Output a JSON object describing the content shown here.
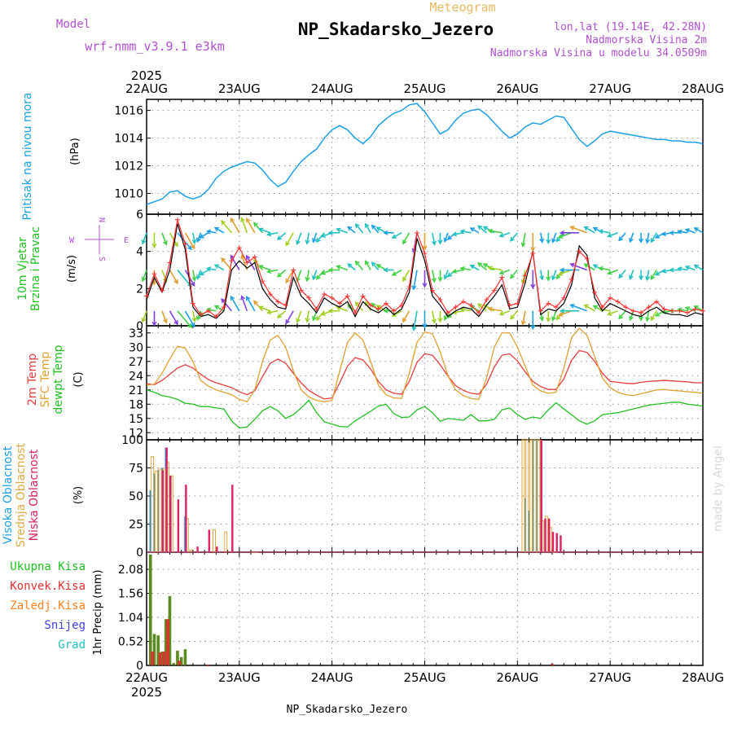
{
  "header": {
    "meteogram_label": "Meteogram",
    "station_title": "NP_Skadarsko_Jezero",
    "model_label": "Model",
    "model_name": "wrf-nmm_v3.9.1 e3km",
    "coords": "lon,lat (19.14E, 42.28N)",
    "elevation": "Nadmorska Visina 2m",
    "model_elevation": "Nadmorska Visina u modelu 34.0509m",
    "footer_station": "NP_Skadarsko_Jezero",
    "credit": "made by Angel"
  },
  "time_axis": {
    "year": "2025",
    "day_labels": [
      "22AUG",
      "23AUG",
      "24AUG",
      "25AUG",
      "26AUG",
      "27AUG",
      "28AUG"
    ],
    "range_hours": [
      0,
      144
    ]
  },
  "compass": {
    "n": "N",
    "s": "S",
    "e": "E",
    "w": "W"
  },
  "colors": {
    "pressure": "#1aa0e6",
    "wind_obs": "#000000",
    "wind_gust": "#ff3030",
    "temp2m": "#e83c3c",
    "sfc_temp": "#e0a030",
    "dewpt": "#20c020",
    "cloud_high": "#1e90dc",
    "cloud_mid": "#e0a840",
    "cloud_low": "#dc2060",
    "precip_total": "#5a8a20",
    "precip_conv": "#e03030",
    "precip_frozen": "#ff8020",
    "snow": "#4040e0",
    "graupel": "#20c0c0",
    "purple_text": "#b050d0"
  },
  "chart_data": [
    {
      "type": "line",
      "name": "pressure",
      "title": "Pritisak na nivou mora",
      "ylabel": "(hPa)",
      "ylim": [
        1008.5,
        1016.8
      ],
      "yticks": [
        1010,
        1012,
        1014,
        1016
      ],
      "x": [
        0,
        2,
        4,
        6,
        8,
        10,
        12,
        14,
        16,
        18,
        20,
        22,
        24,
        26,
        28,
        30,
        32,
        34,
        36,
        38,
        40,
        42,
        44,
        46,
        48,
        50,
        52,
        54,
        56,
        58,
        60,
        62,
        64,
        66,
        68,
        70,
        72,
        74,
        76,
        78,
        80,
        82,
        84,
        86,
        88,
        90,
        92,
        94,
        96,
        98,
        100,
        102,
        104,
        106,
        108,
        110,
        112,
        114,
        116,
        118,
        120,
        122,
        124,
        126,
        128,
        130,
        132,
        134,
        136,
        138,
        140,
        142,
        144
      ],
      "series": [
        {
          "name": "Pritisak na nivou mora",
          "values": [
            1009.2,
            1009.4,
            1009.6,
            1010.1,
            1010.2,
            1009.8,
            1009.6,
            1009.8,
            1010.3,
            1011.1,
            1011.6,
            1011.9,
            1012.1,
            1012.3,
            1012.2,
            1011.7,
            1011.0,
            1010.5,
            1010.8,
            1011.6,
            1012.3,
            1012.8,
            1013.2,
            1014.0,
            1014.6,
            1014.9,
            1014.6,
            1014.0,
            1013.6,
            1014.1,
            1014.9,
            1015.4,
            1015.8,
            1016.0,
            1016.4,
            1016.5,
            1015.9,
            1015.1,
            1014.3,
            1014.6,
            1015.3,
            1015.8,
            1016.0,
            1016.1,
            1015.7,
            1015.1,
            1014.5,
            1014.0,
            1014.3,
            1014.8,
            1015.1,
            1015.0,
            1015.3,
            1015.6,
            1015.5,
            1014.7,
            1013.9,
            1013.4,
            1013.8,
            1014.3,
            1014.5,
            1014.4,
            1014.3,
            1014.2,
            1014.1,
            1014.0,
            1013.9,
            1013.9,
            1013.8,
            1013.8,
            1013.7,
            1013.7,
            1013.6
          ]
        }
      ]
    },
    {
      "type": "line",
      "name": "wind",
      "title": "10m Vjetar Brzina i Pravac",
      "ylabel": "(m/s)",
      "ylim": [
        0,
        6
      ],
      "yticks": [
        0,
        2,
        4,
        6
      ],
      "x": [
        0,
        2,
        4,
        6,
        8,
        10,
        12,
        14,
        16,
        18,
        20,
        22,
        24,
        26,
        28,
        30,
        32,
        34,
        36,
        38,
        40,
        42,
        44,
        46,
        48,
        50,
        52,
        54,
        56,
        58,
        60,
        62,
        64,
        66,
        68,
        70,
        72,
        74,
        76,
        78,
        80,
        82,
        84,
        86,
        88,
        90,
        92,
        94,
        96,
        98,
        100,
        102,
        104,
        106,
        108,
        110,
        112,
        114,
        116,
        118,
        120,
        122,
        124,
        126,
        128,
        130,
        132,
        134,
        136,
        138,
        140,
        142,
        144
      ],
      "series": [
        {
          "name": "wind speed",
          "values": [
            1.4,
            2.6,
            1.8,
            3.0,
            5.5,
            4.1,
            1.0,
            0.5,
            0.6,
            0.4,
            0.8,
            3.0,
            3.5,
            3.1,
            3.4,
            2.0,
            1.4,
            1.0,
            0.9,
            2.6,
            1.6,
            1.2,
            0.7,
            1.5,
            1.2,
            1.0,
            1.3,
            0.5,
            1.3,
            0.9,
            0.7,
            1.0,
            0.6,
            0.9,
            1.8,
            4.7,
            3.5,
            1.6,
            1.1,
            0.5,
            0.8,
            1.0,
            0.9,
            0.5,
            1.1,
            1.6,
            2.2,
            0.9,
            1.0,
            2.3,
            4.0,
            0.6,
            0.9,
            0.8,
            1.2,
            2.2,
            4.3,
            3.8,
            1.5,
            0.8,
            1.2,
            1.0,
            0.8,
            0.6,
            0.5,
            0.8,
            1.0,
            0.7,
            0.6,
            0.6,
            0.5,
            0.7,
            0.6
          ]
        },
        {
          "name": "gust",
          "values": [
            1.6,
            2.8,
            1.9,
            3.4,
            5.7,
            4.4,
            1.2,
            0.6,
            0.8,
            0.5,
            1.0,
            3.5,
            4.2,
            3.4,
            3.7,
            2.4,
            1.7,
            1.3,
            1.1,
            3.0,
            1.9,
            1.5,
            0.9,
            1.7,
            1.5,
            1.2,
            1.6,
            0.7,
            1.6,
            1.1,
            0.9,
            1.2,
            0.8,
            1.1,
            2.1,
            5.0,
            3.9,
            1.9,
            1.4,
            0.7,
            1.0,
            1.3,
            1.1,
            0.7,
            1.4,
            1.9,
            2.6,
            1.1,
            1.2,
            2.7,
            3.9,
            0.8,
            1.2,
            1.0,
            1.5,
            2.5,
            4.0,
            3.6,
            1.8,
            1.0,
            1.5,
            1.3,
            1.0,
            0.8,
            0.7,
            1.0,
            1.3,
            0.9,
            0.8,
            0.8,
            0.7,
            0.9,
            0.8
          ]
        }
      ],
      "dir_deg": [
        200,
        180,
        160,
        150,
        140,
        150,
        170,
        200,
        240,
        280,
        300,
        320,
        330,
        340,
        330,
        320,
        290,
        260,
        230,
        210,
        200,
        190,
        200,
        220,
        250,
        270,
        290,
        310,
        320,
        330,
        320,
        300,
        270,
        240,
        210,
        190,
        180,
        170,
        180,
        200,
        230,
        260,
        280,
        300,
        310,
        300,
        280,
        250,
        220,
        190,
        180,
        170,
        180,
        200,
        220,
        250,
        270,
        290,
        300,
        300,
        280,
        250,
        220,
        200,
        180,
        190,
        210,
        240,
        260,
        270,
        280,
        290,
        300
      ]
    },
    {
      "type": "line",
      "name": "temperature",
      "title": "2m Temp / SFC Temp / dewpt Temp",
      "ylabel": "(C)",
      "ylim": [
        10.5,
        34.5
      ],
      "yticks": [
        12,
        15,
        18,
        21,
        24,
        27,
        30,
        33
      ],
      "x": [
        0,
        2,
        4,
        6,
        8,
        10,
        12,
        14,
        16,
        18,
        20,
        22,
        24,
        26,
        28,
        30,
        32,
        34,
        36,
        38,
        40,
        42,
        44,
        46,
        48,
        50,
        52,
        54,
        56,
        58,
        60,
        62,
        64,
        66,
        68,
        70,
        72,
        74,
        76,
        78,
        80,
        82,
        84,
        86,
        88,
        90,
        92,
        94,
        96,
        98,
        100,
        102,
        104,
        106,
        108,
        110,
        112,
        114,
        116,
        118,
        120,
        122,
        124,
        126,
        128,
        130,
        132,
        134,
        136,
        138,
        140,
        142,
        144
      ],
      "series": [
        {
          "name": "2m Temp",
          "values": [
            22.3,
            22.1,
            23.0,
            24.3,
            25.6,
            26.3,
            25.6,
            24.3,
            23.2,
            22.5,
            22.0,
            21.5,
            20.6,
            20.0,
            20.8,
            23.8,
            26.6,
            27.5,
            26.6,
            24.5,
            22.5,
            20.9,
            19.9,
            19.1,
            19.3,
            22.5,
            26.0,
            27.8,
            27.3,
            25.4,
            22.8,
            21.0,
            20.3,
            20.1,
            22.8,
            26.8,
            28.6,
            28.3,
            26.3,
            23.9,
            21.9,
            20.9,
            20.3,
            20.1,
            22.2,
            25.8,
            28.3,
            28.6,
            27.1,
            24.8,
            22.8,
            21.7,
            21.1,
            21.1,
            23.3,
            27.2,
            29.3,
            28.9,
            27.0,
            24.5,
            22.8,
            22.6,
            22.4,
            22.3,
            22.6,
            22.8,
            22.9,
            23.0,
            22.9,
            22.8,
            22.7,
            22.5,
            22.5
          ]
        },
        {
          "name": "SFC Temp",
          "values": [
            22.0,
            22.2,
            24.5,
            27.5,
            30.2,
            29.8,
            27.0,
            23.0,
            21.8,
            21.0,
            20.5,
            20.0,
            19.0,
            18.5,
            21.0,
            27.0,
            31.5,
            32.5,
            30.0,
            25.0,
            21.0,
            19.5,
            18.8,
            18.5,
            18.8,
            25.0,
            31.0,
            33.0,
            31.5,
            27.0,
            22.0,
            20.0,
            19.3,
            19.2,
            24.5,
            31.0,
            33.2,
            32.8,
            29.0,
            24.0,
            21.0,
            19.8,
            19.2,
            19.0,
            23.5,
            30.0,
            33.0,
            33.0,
            30.0,
            26.0,
            22.0,
            20.8,
            20.3,
            20.5,
            25.5,
            32.0,
            34.0,
            32.5,
            28.0,
            23.5,
            21.5,
            20.5,
            20.0,
            19.8,
            20.2,
            20.6,
            21.0,
            21.1,
            20.9,
            20.8,
            20.6,
            20.5,
            20.3
          ]
        },
        {
          "name": "dewpt Temp",
          "values": [
            21.0,
            20.5,
            19.8,
            19.5,
            19.0,
            18.2,
            18.0,
            17.5,
            17.5,
            17.2,
            17.0,
            14.5,
            13.0,
            13.2,
            14.8,
            16.6,
            17.5,
            16.6,
            15.0,
            15.8,
            17.2,
            18.8,
            16.2,
            14.3,
            13.8,
            13.3,
            13.2,
            14.5,
            15.5,
            16.5,
            17.6,
            18.0,
            16.0,
            15.2,
            15.3,
            16.8,
            17.5,
            16.2,
            14.4,
            15.0,
            14.8,
            14.6,
            15.8,
            14.5,
            14.5,
            14.8,
            16.8,
            17.2,
            15.8,
            14.8,
            15.3,
            15.0,
            16.8,
            18.3,
            17.0,
            15.8,
            14.5,
            13.8,
            14.5,
            15.8,
            16.0,
            16.2,
            16.6,
            17.0,
            17.4,
            17.8,
            18.0,
            18.2,
            18.4,
            18.4,
            18.0,
            17.8,
            17.6
          ]
        }
      ]
    },
    {
      "type": "bar",
      "name": "clouds",
      "title": "Visoka / Srednja / Niska Oblacnost",
      "ylabel": "(%)",
      "ylim": [
        0,
        100
      ],
      "yticks": [
        0,
        25,
        50,
        75,
        100
      ],
      "series": [
        {
          "name": "Visoka Oblacnost",
          "x": [
            1,
            2,
            3,
            4,
            5,
            6,
            10,
            21,
            98,
            99,
            100,
            101,
            102
          ],
          "values": [
            55,
            70,
            73,
            75,
            93,
            68,
            32,
            0,
            48,
            37,
            100,
            100,
            100
          ]
        },
        {
          "name": "Srednja Oblacnost",
          "x": [
            1.5,
            2.5,
            3.5,
            4.5,
            5.5,
            6.5,
            10.5,
            11.5,
            17.5,
            20.5,
            27.5,
            28.5,
            97.5,
            98.5,
            99.5,
            100.5,
            101.5,
            102.5,
            103.5,
            104.5,
            105.5
          ],
          "values": [
            85,
            72,
            74,
            74,
            80,
            68,
            30,
            2,
            20,
            18,
            0,
            0,
            100,
            100,
            100,
            100,
            100,
            28,
            32,
            22,
            0
          ]
        },
        {
          "name": "Niska Oblacnost",
          "x": [
            2.2,
            3.2,
            4.2,
            5.2,
            6.2,
            8.2,
            10.2,
            13.2,
            16.2,
            18.2,
            22.2,
            102.2,
            103.2,
            104.2,
            105.2,
            106.2,
            107.2
          ],
          "values": [
            0,
            0,
            73,
            93,
            68,
            47,
            60,
            5,
            20,
            5,
            60,
            100,
            30,
            30,
            18,
            17,
            15
          ]
        }
      ]
    },
    {
      "type": "bar",
      "name": "precipitation",
      "title": "Ukupna Kisa / Konvek.Kisa / Zaledj.Kisa / Snijeg / Grad",
      "ylabel": "1hr Precip (mm)",
      "ylim": [
        0,
        2.45
      ],
      "yticks": [
        0,
        0.52,
        1.04,
        1.56,
        2.08
      ],
      "series": [
        {
          "name": "Ukupna Kisa",
          "x": [
            1,
            2,
            3,
            4,
            5,
            6,
            7,
            8,
            9,
            10
          ],
          "values": [
            2.4,
            0.68,
            0.65,
            0.3,
            1.0,
            1.5,
            0.05,
            0.32,
            0.18,
            0.35
          ]
        },
        {
          "name": "Konvek.Kisa",
          "x": [
            1.5,
            3.5,
            4.5,
            5.5,
            8.5,
            16,
            105
          ],
          "values": [
            0.3,
            0.28,
            0.3,
            1.0,
            0.1,
            0.02,
            0.03
          ]
        }
      ]
    }
  ],
  "panel_labels": [
    {
      "lines": [
        {
          "text": "Pritisak na nivou mora",
          "color": "#1aa0e6"
        }
      ]
    },
    {
      "lines": [
        {
          "text": "10m Vjetar",
          "color": "#20c020"
        },
        {
          "text": "Brzina i Pravac",
          "color": "#20c020"
        }
      ]
    },
    {
      "lines": [
        {
          "text": "2m Temp",
          "color": "#e83c3c"
        },
        {
          "text": "SFC Temp",
          "color": "#e0a030"
        },
        {
          "text": "dewpt Temp",
          "color": "#20c020"
        }
      ]
    },
    {
      "lines": [
        {
          "text": "Visoka Oblacnost",
          "color": "#1aa0e6"
        },
        {
          "text": "Srednja Oblacnost",
          "color": "#e0a840"
        },
        {
          "text": "Niska Oblacnost",
          "color": "#dc2060"
        }
      ]
    }
  ],
  "precip_legend": [
    {
      "text": "Ukupna Kisa",
      "color": "#20c020"
    },
    {
      "text": "Konvek.Kisa",
      "color": "#e03030"
    },
    {
      "text": "Zaledj.Kisa",
      "color": "#ff8020"
    },
    {
      "text": "Snijeg",
      "color": "#4040e0"
    },
    {
      "text": "Grad",
      "color": "#20c0c0"
    }
  ]
}
